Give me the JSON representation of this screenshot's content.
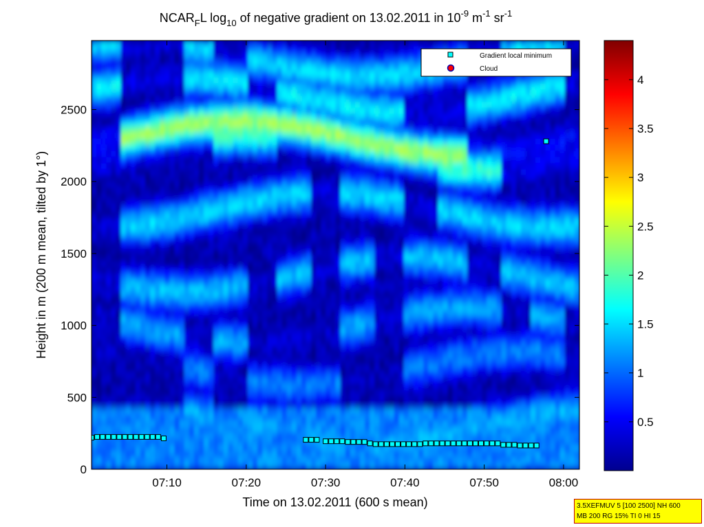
{
  "chart_data": {
    "type": "heatmap",
    "title": {
      "prefix": "NCAR",
      "prefix_sub": "F",
      "mid": "L log",
      "mid_sub": "10",
      "text": " of negative gradient on 13.02.2011 in 10",
      "exp1": "-9",
      "unit1": " m",
      "exp2": "-1",
      "unit2": " sr",
      "exp3": "-1"
    },
    "xlabel": "Time on 13.02.2011 (600 s mean)",
    "ylabel": "Height in m (200 m mean, tilted by 1°)",
    "x_ticks": [
      "07:10",
      "07:20",
      "07:30",
      "07:40",
      "07:50",
      "08:00"
    ],
    "x_tick_minutes": [
      10,
      20,
      30,
      40,
      50,
      60
    ],
    "xlim_minutes": [
      0.5,
      62
    ],
    "y_ticks": [
      0,
      500,
      1000,
      1500,
      2000,
      2500
    ],
    "ylim": [
      0,
      2980
    ],
    "colorbar": {
      "ticks": [
        "0.5",
        "1",
        "1.5",
        "2",
        "2.5",
        "3",
        "3.5",
        "4"
      ],
      "tick_values": [
        0.5,
        1,
        1.5,
        2,
        2.5,
        3,
        3.5,
        4
      ],
      "range": [
        0,
        4.4
      ]
    },
    "colormap": "jet",
    "layers": [
      {
        "h": 2300,
        "v": 2.35
      },
      {
        "h": 2200,
        "v": 1.9
      },
      {
        "h": 2600,
        "v": 1.6
      },
      {
        "h": 2850,
        "v": 1.5
      },
      {
        "h": 1800,
        "v": 1.5
      },
      {
        "h": 1350,
        "v": 1.4
      },
      {
        "h": 1000,
        "v": 1.3
      },
      {
        "h": 700,
        "v": 1.1
      },
      {
        "h": 300,
        "v": 1.3
      },
      {
        "h": 150,
        "v": 0.9
      }
    ],
    "series": [
      {
        "name": "Gradient local minimum",
        "marker": "square",
        "color": "#00ffff",
        "points": [
          {
            "t": 0.5,
            "h": 220
          },
          {
            "t": 1.2,
            "h": 225
          },
          {
            "t": 1.9,
            "h": 225
          },
          {
            "t": 2.6,
            "h": 225
          },
          {
            "t": 3.3,
            "h": 225
          },
          {
            "t": 4.0,
            "h": 225
          },
          {
            "t": 4.7,
            "h": 225
          },
          {
            "t": 5.4,
            "h": 225
          },
          {
            "t": 6.1,
            "h": 225
          },
          {
            "t": 6.8,
            "h": 225
          },
          {
            "t": 7.5,
            "h": 225
          },
          {
            "t": 8.2,
            "h": 225
          },
          {
            "t": 8.9,
            "h": 225
          },
          {
            "t": 9.6,
            "h": 215
          },
          {
            "t": 27.5,
            "h": 205
          },
          {
            "t": 28.2,
            "h": 205
          },
          {
            "t": 28.9,
            "h": 205
          },
          {
            "t": 30.0,
            "h": 195
          },
          {
            "t": 30.7,
            "h": 195
          },
          {
            "t": 31.4,
            "h": 195
          },
          {
            "t": 32.1,
            "h": 195
          },
          {
            "t": 32.8,
            "h": 190
          },
          {
            "t": 33.5,
            "h": 190
          },
          {
            "t": 34.2,
            "h": 190
          },
          {
            "t": 34.9,
            "h": 190
          },
          {
            "t": 35.6,
            "h": 180
          },
          {
            "t": 36.3,
            "h": 175
          },
          {
            "t": 37.0,
            "h": 175
          },
          {
            "t": 37.7,
            "h": 175
          },
          {
            "t": 38.4,
            "h": 175
          },
          {
            "t": 39.1,
            "h": 175
          },
          {
            "t": 39.8,
            "h": 175
          },
          {
            "t": 40.5,
            "h": 175
          },
          {
            "t": 41.2,
            "h": 175
          },
          {
            "t": 41.9,
            "h": 175
          },
          {
            "t": 42.6,
            "h": 180
          },
          {
            "t": 43.3,
            "h": 180
          },
          {
            "t": 44.0,
            "h": 180
          },
          {
            "t": 44.7,
            "h": 180
          },
          {
            "t": 45.4,
            "h": 180
          },
          {
            "t": 46.1,
            "h": 180
          },
          {
            "t": 46.8,
            "h": 180
          },
          {
            "t": 47.5,
            "h": 180
          },
          {
            "t": 48.2,
            "h": 180
          },
          {
            "t": 48.9,
            "h": 180
          },
          {
            "t": 49.6,
            "h": 180
          },
          {
            "t": 50.3,
            "h": 180
          },
          {
            "t": 51.0,
            "h": 180
          },
          {
            "t": 51.7,
            "h": 180
          },
          {
            "t": 52.4,
            "h": 170
          },
          {
            "t": 53.1,
            "h": 170
          },
          {
            "t": 53.8,
            "h": 170
          },
          {
            "t": 54.5,
            "h": 165
          },
          {
            "t": 55.2,
            "h": 165
          },
          {
            "t": 55.9,
            "h": 165
          },
          {
            "t": 56.6,
            "h": 165
          },
          {
            "t": 57.8,
            "h": 2280
          }
        ]
      },
      {
        "name": "Cloud",
        "marker": "circle",
        "color": "#ff0000",
        "points": []
      }
    ],
    "legend": "top-right",
    "grid": false
  },
  "info_box": {
    "line1": "3.5XEFMUV 5 [100 2500] NH 600",
    "line2": "MB 200 RG 15% TI 0 HI 15"
  }
}
